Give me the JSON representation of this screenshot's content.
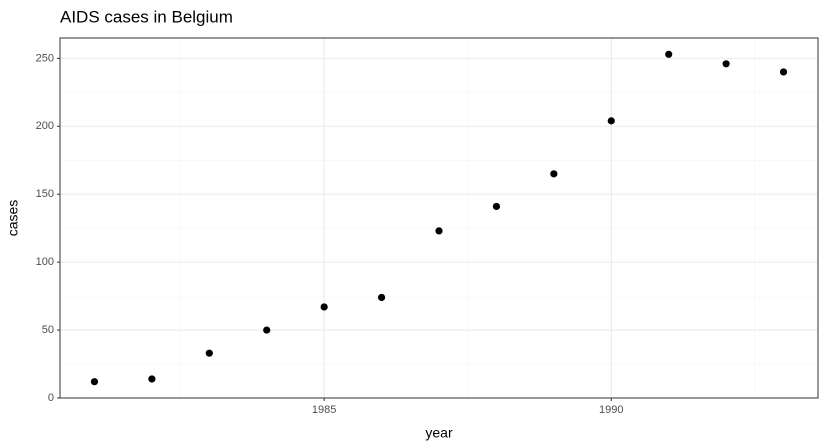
{
  "chart_data": {
    "type": "scatter",
    "title": "AIDS cases in Belgium",
    "x_label": "year",
    "y_label": "cases",
    "x": [
      1981,
      1982,
      1983,
      1984,
      1985,
      1986,
      1987,
      1988,
      1989,
      1990,
      1991,
      1992,
      1993
    ],
    "values": [
      12,
      14,
      33,
      50,
      67,
      74,
      123,
      141,
      165,
      204,
      253,
      246,
      240
    ],
    "color": "#000000",
    "xlim": [
      1980.4,
      1993.6
    ],
    "xticks": [
      1985,
      1990
    ],
    "x_minor_ticks": [
      1982.5,
      1987.5,
      1992.5
    ],
    "ylim": [
      0,
      265
    ],
    "yticks": [
      0,
      50,
      100,
      150,
      200,
      250
    ],
    "y_minor_ticks": [
      25,
      75,
      125,
      175,
      225
    ],
    "grid": true
  }
}
